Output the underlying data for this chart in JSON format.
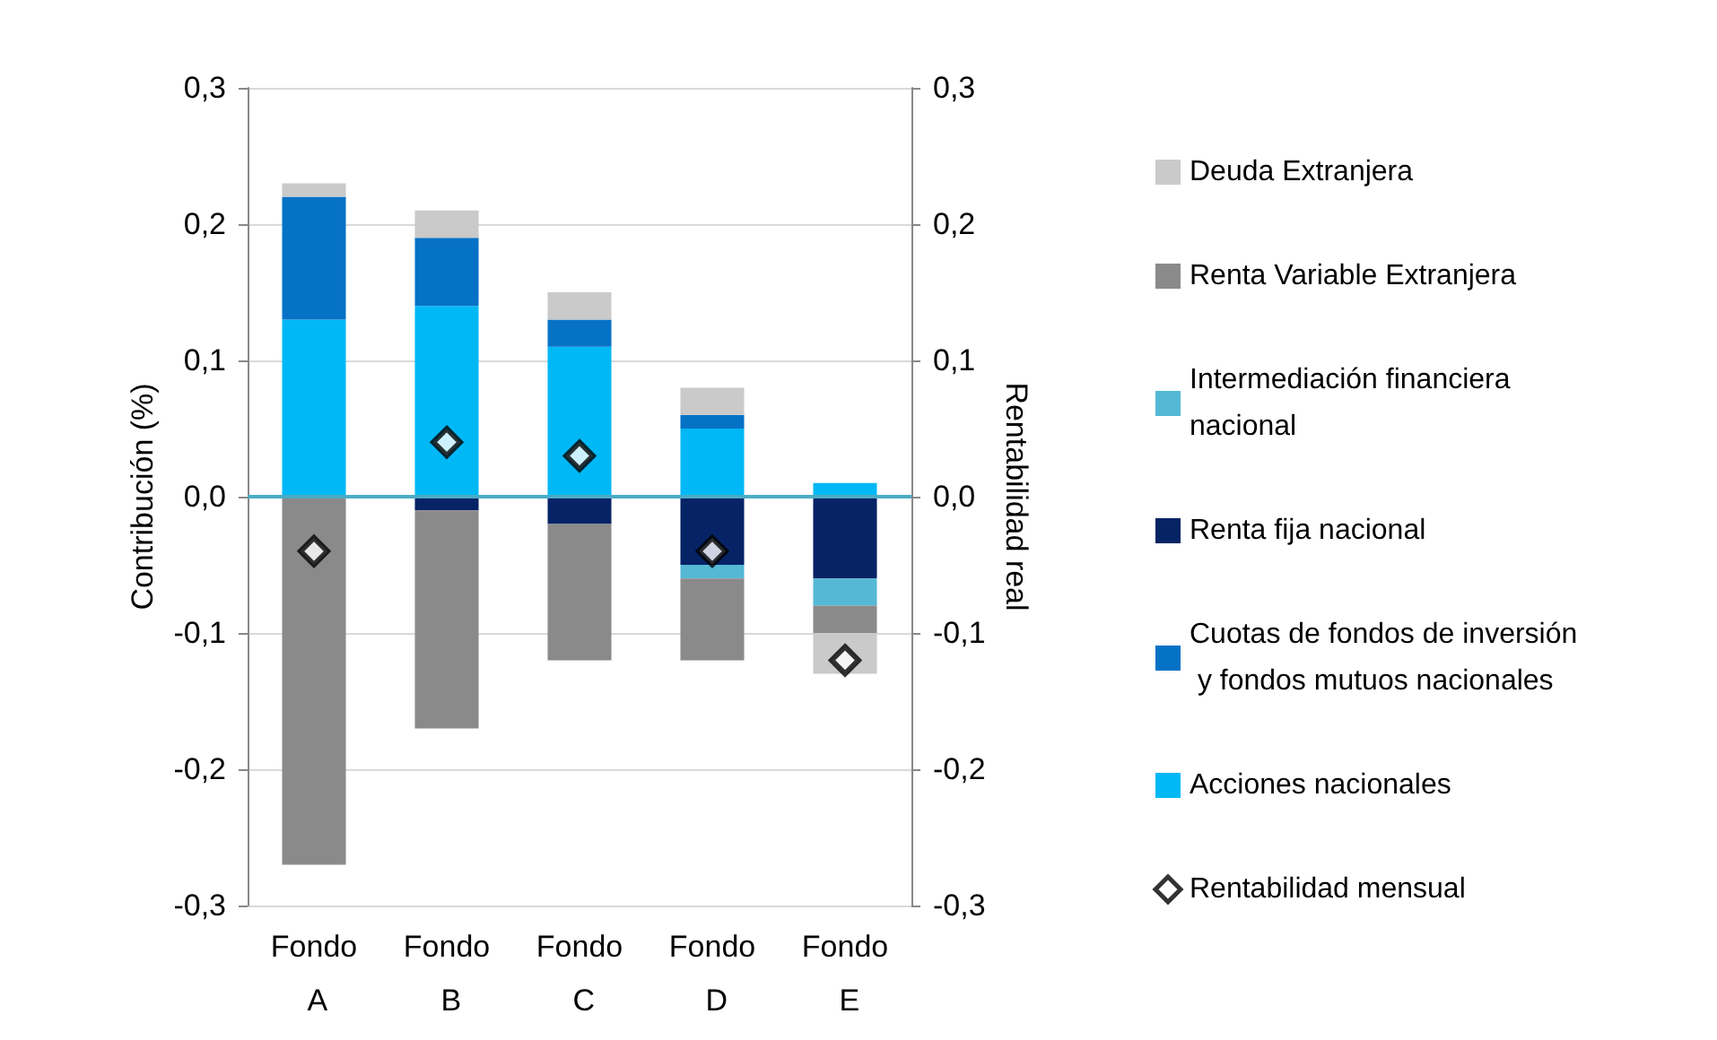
{
  "chart_data": {
    "type": "bar",
    "stacked": true,
    "ylabel": "Contribución (%)",
    "y2label": "Rentabilidad real",
    "categories": [
      "Fondo A",
      "Fondo B",
      "Fondo C",
      "Fondo D",
      "Fondo E"
    ],
    "series": [
      {
        "name": "Acciones nacionales",
        "color": "#00b8f5",
        "values": [
          0.13,
          0.14,
          0.11,
          0.05,
          0.01
        ]
      },
      {
        "name": "Cuotas de fondos de inversión y fondos mutuos nacionales",
        "color": "#0672c6",
        "values": [
          0.09,
          0.05,
          0.02,
          0.01,
          null
        ]
      },
      {
        "name": "Renta fija nacional",
        "color": "#062366",
        "values": [
          null,
          -0.01,
          -0.02,
          -0.05,
          -0.06
        ]
      },
      {
        "name": "Intermediación financiera nacional",
        "color": "#55b8d5",
        "values": [
          null,
          null,
          null,
          -0.01,
          -0.02
        ]
      },
      {
        "name": "Renta Variable Extranjera",
        "color": "#8a8a8a",
        "values": [
          -0.27,
          -0.16,
          -0.1,
          -0.06,
          -0.02
        ]
      },
      {
        "name": "Deuda Extranjera",
        "color": "#cacaca",
        "values": [
          0.01,
          0.02,
          0.02,
          0.02,
          -0.03
        ]
      },
      {
        "name": "Rentabilidad mensual",
        "type": "scatter",
        "color": "#000000",
        "marker": "diamond",
        "values": [
          -0.04,
          0.04,
          0.03,
          -0.04,
          -0.12
        ]
      }
    ],
    "ylim": [
      -0.3,
      0.3
    ],
    "yticks": [
      {
        "value": -0.3,
        "label": "-0,3"
      },
      {
        "value": -0.2,
        "label": "-0,2"
      },
      {
        "value": -0.1,
        "label": "-0,1"
      },
      {
        "value": 0,
        "label": "0,0"
      },
      {
        "value": 0.1,
        "label": "0,1"
      },
      {
        "value": 0.2,
        "label": "0,2"
      },
      {
        "value": 0.3,
        "label": "0,3"
      }
    ],
    "y2lim": [
      -0.3,
      0.3
    ],
    "y2ticks": [
      {
        "value": -0.3,
        "label": "-0,3"
      },
      {
        "value": -0.2,
        "label": "-0,2"
      },
      {
        "value": -0.1,
        "label": "-0,1"
      },
      {
        "value": 0,
        "label": "0,0"
      },
      {
        "value": 0.1,
        "label": "0,1"
      },
      {
        "value": 0.2,
        "label": "0,2"
      },
      {
        "value": 0.3,
        "label": "0,3"
      }
    ],
    "ref_lines": [
      {
        "axis": "y",
        "value": 0,
        "color": "#4bacc6"
      }
    ],
    "grid": "y",
    "legend": "right"
  }
}
